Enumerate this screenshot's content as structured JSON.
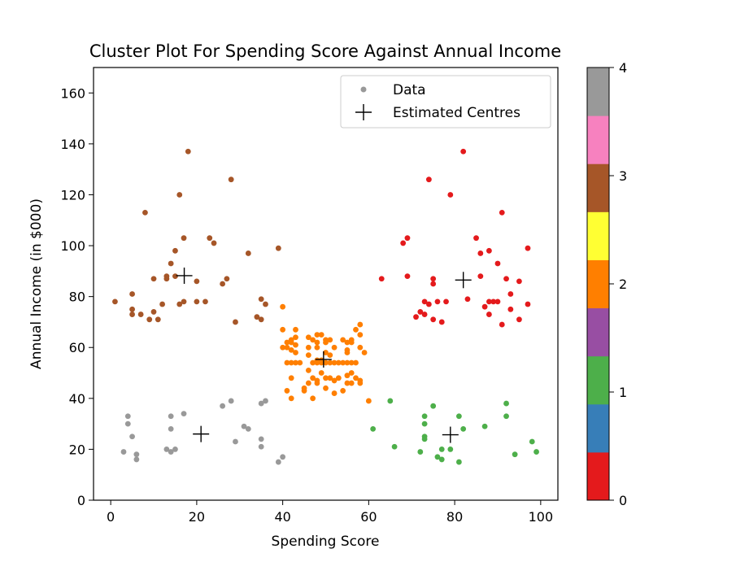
{
  "chart_data": {
    "type": "scatter",
    "title": "Cluster Plot For Spending Score Against Annual Income",
    "xlabel": "Spending Score",
    "ylabel": "Annual Income (in $000)",
    "xlim": [
      -4,
      104
    ],
    "ylim": [
      0,
      170
    ],
    "xticks": [
      0,
      20,
      40,
      60,
      80,
      100
    ],
    "yticks": [
      0,
      20,
      40,
      60,
      80,
      100,
      120,
      140,
      160
    ],
    "grid": false,
    "legend": {
      "position": "top-right",
      "entries": [
        {
          "label": "Data",
          "marker": "dot",
          "color": "#999999"
        },
        {
          "label": "Estimated Centres",
          "marker": "plus",
          "color": "#000000"
        }
      ]
    },
    "colorbar": {
      "range": [
        0,
        4
      ],
      "ticks": [
        0,
        1,
        2,
        3,
        4
      ],
      "colors": [
        "#e41a1c",
        "#377eb8",
        "#4daf4a",
        "#984ea3",
        "#ff7f00",
        "#ffff33",
        "#a65628",
        "#f781bf",
        "#999999"
      ]
    },
    "cluster_colors": [
      "#e41a1c",
      "#4daf4a",
      "#ff7f00",
      "#a65628",
      "#999999"
    ],
    "series": [
      {
        "cluster": 0,
        "points": [
          [
            63,
            87
          ],
          [
            68,
            101
          ],
          [
            69,
            103
          ],
          [
            69,
            88
          ],
          [
            71,
            72
          ],
          [
            72,
            74
          ],
          [
            73,
            73
          ],
          [
            73,
            78
          ],
          [
            74,
            77
          ],
          [
            74,
            126
          ],
          [
            75,
            71
          ],
          [
            75,
            85
          ],
          [
            75,
            87
          ],
          [
            76,
            78
          ],
          [
            77,
            70
          ],
          [
            78,
            78
          ],
          [
            79,
            120
          ],
          [
            82,
            137
          ],
          [
            83,
            79
          ],
          [
            85,
            103
          ],
          [
            86,
            88
          ],
          [
            86,
            97
          ],
          [
            87,
            76
          ],
          [
            88,
            98
          ],
          [
            88,
            73
          ],
          [
            88,
            78
          ],
          [
            89,
            78
          ],
          [
            90,
            78
          ],
          [
            90,
            93
          ],
          [
            91,
            113
          ],
          [
            91,
            69
          ],
          [
            92,
            87
          ],
          [
            93,
            81
          ],
          [
            93,
            75
          ],
          [
            95,
            71
          ],
          [
            95,
            86
          ],
          [
            97,
            77
          ],
          [
            97,
            99
          ]
        ]
      },
      {
        "cluster": 1,
        "points": [
          [
            61,
            28
          ],
          [
            65,
            39
          ],
          [
            66,
            21
          ],
          [
            72,
            19
          ],
          [
            73,
            30
          ],
          [
            73,
            33
          ],
          [
            73,
            24
          ],
          [
            73,
            25
          ],
          [
            75,
            37
          ],
          [
            76,
            17
          ],
          [
            77,
            16
          ],
          [
            77,
            20
          ],
          [
            79,
            20
          ],
          [
            81,
            15
          ],
          [
            81,
            33
          ],
          [
            82,
            28
          ],
          [
            87,
            29
          ],
          [
            92,
            33
          ],
          [
            92,
            38
          ],
          [
            94,
            18
          ],
          [
            98,
            23
          ],
          [
            99,
            19
          ]
        ]
      },
      {
        "cluster": 2,
        "points": [
          [
            40,
            76
          ],
          [
            40,
            67
          ],
          [
            40,
            60
          ],
          [
            41,
            62
          ],
          [
            41,
            60
          ],
          [
            41,
            54
          ],
          [
            41,
            43
          ],
          [
            42,
            63
          ],
          [
            42,
            62
          ],
          [
            42,
            59
          ],
          [
            42,
            54
          ],
          [
            42,
            48
          ],
          [
            42,
            40
          ],
          [
            43,
            64
          ],
          [
            43,
            67
          ],
          [
            43,
            61
          ],
          [
            43,
            58
          ],
          [
            43,
            54
          ],
          [
            44,
            54
          ],
          [
            45,
            44
          ],
          [
            45,
            43
          ],
          [
            46,
            64
          ],
          [
            46,
            60
          ],
          [
            46,
            51
          ],
          [
            46,
            46
          ],
          [
            46,
            57
          ],
          [
            47,
            63
          ],
          [
            47,
            54
          ],
          [
            47,
            48
          ],
          [
            47,
            40
          ],
          [
            48,
            65
          ],
          [
            48,
            62
          ],
          [
            48,
            60
          ],
          [
            48,
            55
          ],
          [
            48,
            54
          ],
          [
            48,
            47
          ],
          [
            48,
            46
          ],
          [
            49,
            65
          ],
          [
            49,
            55
          ],
          [
            49,
            54
          ],
          [
            49,
            50
          ],
          [
            50,
            63
          ],
          [
            50,
            62
          ],
          [
            50,
            58
          ],
          [
            50,
            54
          ],
          [
            50,
            48
          ],
          [
            50,
            44
          ],
          [
            51,
            63
          ],
          [
            51,
            57
          ],
          [
            51,
            54
          ],
          [
            51,
            48
          ],
          [
            52,
            60
          ],
          [
            52,
            54
          ],
          [
            52,
            47
          ],
          [
            52,
            42
          ],
          [
            53,
            54
          ],
          [
            53,
            48
          ],
          [
            54,
            63
          ],
          [
            54,
            54
          ],
          [
            54,
            43
          ],
          [
            55,
            62
          ],
          [
            55,
            59
          ],
          [
            55,
            58
          ],
          [
            55,
            54
          ],
          [
            55,
            49
          ],
          [
            55,
            46
          ],
          [
            56,
            63
          ],
          [
            56,
            62
          ],
          [
            56,
            54
          ],
          [
            56,
            50
          ],
          [
            56,
            46
          ],
          [
            57,
            67
          ],
          [
            57,
            54
          ],
          [
            57,
            48
          ],
          [
            58,
            69
          ],
          [
            58,
            65
          ],
          [
            58,
            60
          ],
          [
            58,
            47
          ],
          [
            58,
            46
          ],
          [
            59,
            58
          ],
          [
            60,
            39
          ]
        ]
      },
      {
        "cluster": 3,
        "points": [
          [
            1,
            78
          ],
          [
            5,
            75
          ],
          [
            5,
            73
          ],
          [
            5,
            81
          ],
          [
            7,
            73
          ],
          [
            8,
            113
          ],
          [
            9,
            71
          ],
          [
            10,
            87
          ],
          [
            10,
            74
          ],
          [
            11,
            71
          ],
          [
            12,
            77
          ],
          [
            13,
            87
          ],
          [
            13,
            88
          ],
          [
            14,
            93
          ],
          [
            15,
            88
          ],
          [
            15,
            98
          ],
          [
            16,
            77
          ],
          [
            16,
            120
          ],
          [
            17,
            103
          ],
          [
            17,
            78
          ],
          [
            18,
            137
          ],
          [
            20,
            78
          ],
          [
            20,
            86
          ],
          [
            22,
            78
          ],
          [
            23,
            103
          ],
          [
            24,
            101
          ],
          [
            26,
            85
          ],
          [
            27,
            87
          ],
          [
            28,
            126
          ],
          [
            29,
            70
          ],
          [
            32,
            97
          ],
          [
            34,
            72
          ],
          [
            35,
            71
          ],
          [
            35,
            79
          ],
          [
            36,
            77
          ],
          [
            39,
            99
          ]
        ]
      },
      {
        "cluster": 4,
        "points": [
          [
            3,
            19
          ],
          [
            4,
            33
          ],
          [
            4,
            30
          ],
          [
            5,
            25
          ],
          [
            6,
            18
          ],
          [
            6,
            16
          ],
          [
            13,
            20
          ],
          [
            14,
            33
          ],
          [
            14,
            28
          ],
          [
            14,
            19
          ],
          [
            15,
            20
          ],
          [
            17,
            34
          ],
          [
            26,
            37
          ],
          [
            28,
            39
          ],
          [
            29,
            23
          ],
          [
            31,
            29
          ],
          [
            32,
            28
          ],
          [
            35,
            38
          ],
          [
            35,
            24
          ],
          [
            35,
            21
          ],
          [
            36,
            39
          ],
          [
            39,
            15
          ],
          [
            40,
            17
          ]
        ]
      }
    ],
    "centres": [
      [
        82,
        86.5
      ],
      [
        79,
        25.7
      ],
      [
        49.5,
        55.3
      ],
      [
        17.1,
        88.2
      ],
      [
        21,
        26
      ]
    ]
  }
}
